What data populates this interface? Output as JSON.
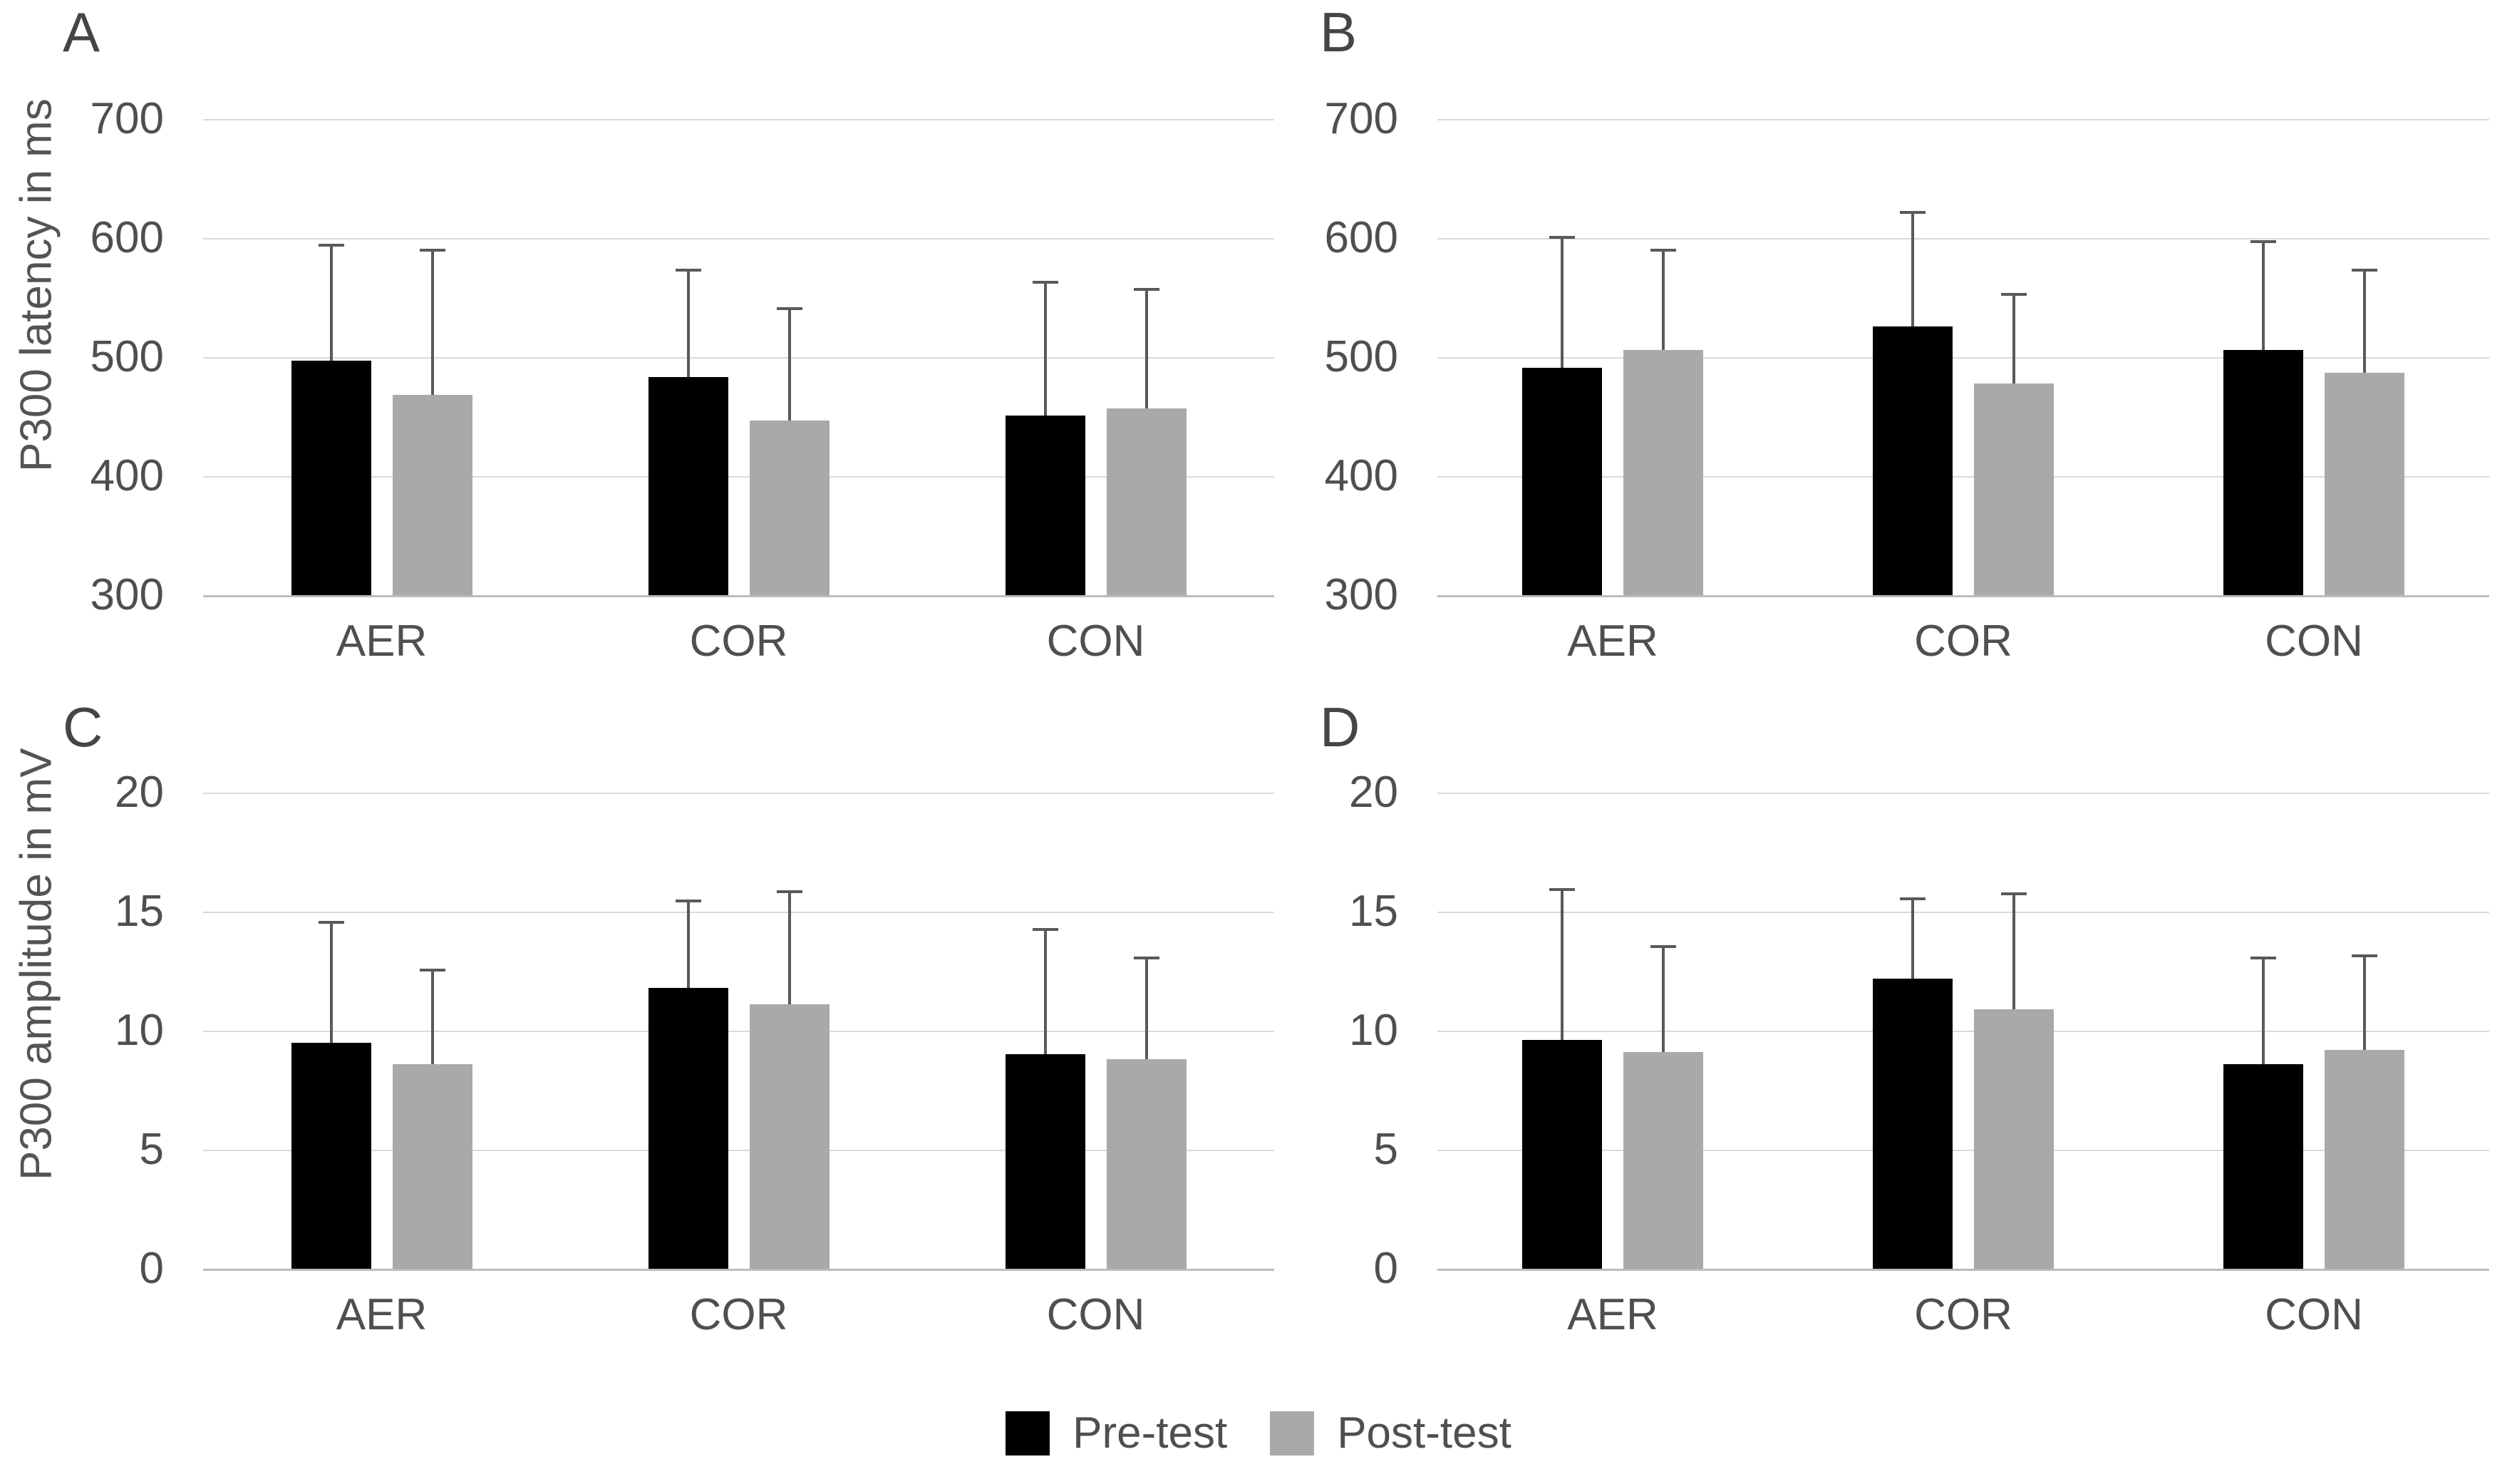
{
  "figure": {
    "legend": {
      "items": [
        {
          "label": "Pre-test",
          "color": "#000000"
        },
        {
          "label": "Post-test",
          "color": "#a9a9a9"
        }
      ]
    },
    "colors": {
      "pre_bar": "#000000",
      "post_bar": "#a9a9a9",
      "error_bar": "#595959",
      "gridline": "#d9d9d9",
      "baseline": "#bcbcbc",
      "text": "#4f4f4f",
      "background": "#ffffff"
    }
  },
  "chart_data": [
    {
      "type": "bar",
      "title": "A",
      "label": "A",
      "row": "top",
      "side": "left",
      "ylabel": "P300 latency in ms",
      "xlabel": "",
      "ylim": [
        300,
        700
      ],
      "yticks": [
        700,
        600,
        500,
        400,
        300
      ],
      "grid": true,
      "categories": [
        "AER",
        "COR",
        "CON"
      ],
      "series": [
        {
          "name": "Pre-test",
          "color": "#000000",
          "values": [
            497,
            483,
            451
          ],
          "error_plus": [
            98,
            91,
            113
          ]
        },
        {
          "name": "Post-test",
          "color": "#a9a9a9",
          "values": [
            468,
            447,
            457
          ],
          "error_plus": [
            123,
            95,
            101
          ]
        }
      ]
    },
    {
      "type": "bar",
      "title": "B",
      "label": "B",
      "row": "top",
      "side": "right",
      "ylabel": "",
      "xlabel": "",
      "ylim": [
        300,
        700
      ],
      "yticks": [
        700,
        600,
        500,
        400,
        300
      ],
      "grid": true,
      "categories": [
        "AER",
        "COR",
        "CON"
      ],
      "series": [
        {
          "name": "Pre-test",
          "color": "#000000",
          "values": [
            491,
            526,
            506
          ],
          "error_plus": [
            111,
            97,
            92
          ]
        },
        {
          "name": "Post-test",
          "color": "#a9a9a9",
          "values": [
            506,
            478,
            487
          ],
          "error_plus": [
            85,
            76,
            87
          ]
        }
      ]
    },
    {
      "type": "bar",
      "title": "C",
      "label": "C",
      "row": "bottom",
      "side": "left",
      "ylabel": "P300 amplitude in mV",
      "xlabel": "",
      "ylim": [
        0,
        20
      ],
      "yticks": [
        20,
        15,
        10,
        5,
        0
      ],
      "grid": true,
      "categories": [
        "AER",
        "COR",
        "CON"
      ],
      "series": [
        {
          "name": "Pre-test",
          "color": "#000000",
          "values": [
            9.5,
            11.8,
            9.0
          ],
          "error_plus": [
            5.1,
            3.7,
            5.3
          ]
        },
        {
          "name": "Post-test",
          "color": "#a9a9a9",
          "values": [
            8.6,
            11.1,
            8.8
          ],
          "error_plus": [
            4.0,
            4.8,
            4.3
          ]
        }
      ]
    },
    {
      "type": "bar",
      "title": "D",
      "label": "D",
      "row": "bottom",
      "side": "right",
      "ylabel": "",
      "xlabel": "",
      "ylim": [
        0,
        20
      ],
      "yticks": [
        20,
        15,
        10,
        5,
        0
      ],
      "grid": true,
      "categories": [
        "AER",
        "COR",
        "CON"
      ],
      "series": [
        {
          "name": "Pre-test",
          "color": "#000000",
          "values": [
            9.6,
            12.2,
            8.6
          ],
          "error_plus": [
            6.4,
            3.4,
            4.5
          ]
        },
        {
          "name": "Post-test",
          "color": "#a9a9a9",
          "values": [
            9.1,
            10.9,
            9.2
          ],
          "error_plus": [
            4.5,
            4.9,
            4.0
          ]
        }
      ]
    }
  ]
}
